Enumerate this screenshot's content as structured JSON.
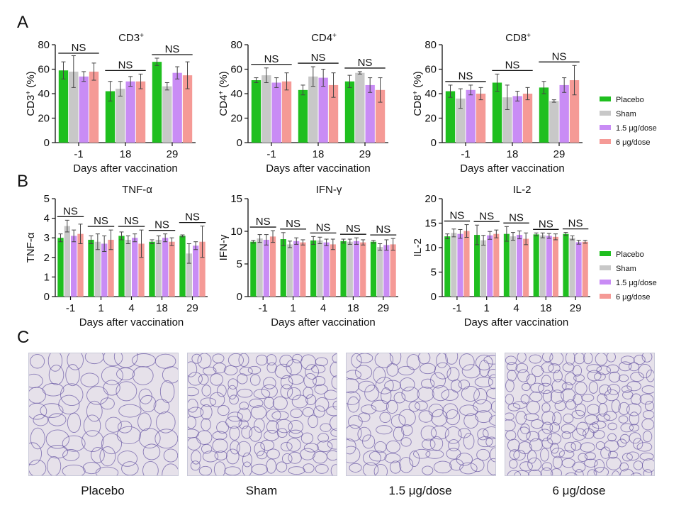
{
  "panel_labels": {
    "a": "A",
    "b": "B",
    "c": "C"
  },
  "legend": [
    {
      "name": "Placebo",
      "color": "#1fbf1f"
    },
    {
      "name": "Sham",
      "color": "#c8c8c8"
    },
    {
      "name": "1.5 μg/dose",
      "color": "#c98cf5"
    },
    {
      "name": "6 μg/dose",
      "color": "#f59a96"
    }
  ],
  "stat_label": "NS",
  "chart_data": [
    {
      "type": "bar",
      "title": "CD3",
      "title_sup": "+",
      "ylabel": "CD3",
      "ylabel_sup": "+",
      "ylabel_suffix": "(%)",
      "xlabel": "Days after vaccination",
      "categories": [
        "-1",
        "18",
        "29"
      ],
      "ylim": [
        0,
        80
      ],
      "yticks": [
        0,
        20,
        40,
        60,
        80
      ],
      "series": [
        {
          "name": "Placebo",
          "values": [
            59,
            42,
            66
          ],
          "errors": [
            7,
            8,
            3
          ]
        },
        {
          "name": "Sham",
          "values": [
            58,
            44,
            46
          ],
          "errors": [
            13,
            6,
            3
          ]
        },
        {
          "name": "1.5 μg/dose",
          "values": [
            54,
            50,
            57
          ],
          "errors": [
            4,
            4,
            5
          ]
        },
        {
          "name": "6 μg/dose",
          "values": [
            58,
            50,
            55
          ],
          "errors": [
            7,
            6,
            11
          ]
        }
      ]
    },
    {
      "type": "bar",
      "title": "CD4",
      "title_sup": "+",
      "ylabel": "CD4",
      "ylabel_sup": "+",
      "ylabel_suffix": "(%)",
      "xlabel": "Days after vaccination",
      "categories": [
        "-1",
        "18",
        "29"
      ],
      "ylim": [
        0,
        80
      ],
      "yticks": [
        0,
        20,
        40,
        60,
        80
      ],
      "series": [
        {
          "name": "Placebo",
          "values": [
            51,
            43,
            50
          ],
          "errors": [
            2,
            4,
            5
          ]
        },
        {
          "name": "Sham",
          "values": [
            55,
            54,
            57
          ],
          "errors": [
            6,
            8,
            1
          ]
        },
        {
          "name": "1.5 μg/dose",
          "values": [
            49,
            53,
            47
          ],
          "errors": [
            4,
            7,
            6
          ]
        },
        {
          "name": "6 μg/dose",
          "values": [
            50,
            47,
            43
          ],
          "errors": [
            7,
            10,
            10
          ]
        }
      ]
    },
    {
      "type": "bar",
      "title": "CD8",
      "title_sup": "+",
      "ylabel": "CD8",
      "ylabel_sup": "+",
      "ylabel_suffix": "(%)",
      "xlabel": "Days after vaccination",
      "categories": [
        "-1",
        "18",
        "29"
      ],
      "ylim": [
        0,
        80
      ],
      "yticks": [
        0,
        20,
        40,
        60,
        80
      ],
      "series": [
        {
          "name": "Placebo",
          "values": [
            42,
            49,
            45
          ],
          "errors": [
            5,
            7,
            5
          ]
        },
        {
          "name": "Sham",
          "values": [
            36,
            37,
            34
          ],
          "errors": [
            8,
            10,
            1
          ]
        },
        {
          "name": "1.5 μg/dose",
          "values": [
            43,
            38,
            47
          ],
          "errors": [
            4,
            4,
            6
          ]
        },
        {
          "name": "6 μg/dose",
          "values": [
            40,
            40,
            51
          ],
          "errors": [
            5,
            5,
            12
          ]
        }
      ]
    },
    {
      "type": "bar",
      "title": "TNF-α",
      "title_sup": "",
      "ylabel": "TNF-α",
      "ylabel_sup": "",
      "ylabel_suffix": "",
      "xlabel": "Days after vaccination",
      "categories": [
        "-1",
        "1",
        "4",
        "18",
        "29"
      ],
      "ylim": [
        0,
        5
      ],
      "yticks": [
        0,
        1,
        2,
        3,
        4,
        5
      ],
      "series": [
        {
          "name": "Placebo",
          "values": [
            3.0,
            2.9,
            3.1,
            2.8,
            3.1
          ],
          "errors": [
            0.2,
            0.2,
            0.2,
            0.1,
            0.05
          ]
        },
        {
          "name": "Sham",
          "values": [
            3.6,
            2.8,
            2.9,
            2.9,
            2.2
          ],
          "errors": [
            0.3,
            0.4,
            0.2,
            0.2,
            0.5
          ]
        },
        {
          "name": "1.5 μg/dose",
          "values": [
            3.1,
            2.7,
            3.0,
            3.0,
            2.6
          ],
          "errors": [
            0.3,
            0.4,
            0.2,
            0.2,
            0.2
          ]
        },
        {
          "name": "6 μg/dose",
          "values": [
            3.2,
            2.9,
            2.7,
            2.8,
            2.8
          ],
          "errors": [
            0.5,
            0.5,
            0.7,
            0.2,
            0.8
          ]
        }
      ]
    },
    {
      "type": "bar",
      "title": "IFN-γ",
      "title_sup": "",
      "ylabel": "IFN-γ",
      "ylabel_sup": "",
      "ylabel_suffix": "",
      "xlabel": "Days after vaccination",
      "categories": [
        "-1",
        "1",
        "4",
        "18",
        "29"
      ],
      "ylim": [
        0,
        15
      ],
      "yticks": [
        0,
        5,
        10,
        15
      ],
      "series": [
        {
          "name": "Placebo",
          "values": [
            8.4,
            8.8,
            8.6,
            8.5,
            8.4
          ],
          "errors": [
            0.2,
            1.0,
            0.6,
            0.3,
            0.2
          ]
        },
        {
          "name": "Sham",
          "values": [
            8.9,
            8.0,
            8.6,
            8.4,
            7.6
          ],
          "errors": [
            0.6,
            0.5,
            0.5,
            0.4,
            0.5
          ]
        },
        {
          "name": "1.5 μg/dose",
          "values": [
            8.7,
            8.5,
            8.3,
            8.5,
            7.9
          ],
          "errors": [
            0.8,
            0.5,
            0.5,
            0.5,
            0.8
          ]
        },
        {
          "name": "6 μg/dose",
          "values": [
            9.2,
            8.3,
            8.0,
            8.3,
            8.0
          ],
          "errors": [
            0.9,
            0.4,
            0.8,
            0.4,
            0.9
          ]
        }
      ]
    },
    {
      "type": "bar",
      "title": "IL-2",
      "title_sup": "",
      "ylabel": "IL-2",
      "ylabel_sup": "",
      "ylabel_suffix": "",
      "xlabel": "Days after vaccination",
      "categories": [
        "-1",
        "1",
        "4",
        "18",
        "29"
      ],
      "ylim": [
        0,
        20
      ],
      "yticks": [
        0,
        5,
        10,
        15,
        20
      ],
      "series": [
        {
          "name": "Placebo",
          "values": [
            12.3,
            12.6,
            12.8,
            12.7,
            12.8
          ],
          "errors": [
            0.5,
            2.0,
            1.5,
            0.3,
            0.3
          ]
        },
        {
          "name": "Sham",
          "values": [
            13.0,
            11.5,
            12.3,
            12.5,
            12.0
          ],
          "errors": [
            0.8,
            1.0,
            0.8,
            0.5,
            0.4
          ]
        },
        {
          "name": "1.5 μg/dose",
          "values": [
            12.8,
            12.5,
            12.6,
            12.4,
            11.1
          ],
          "errors": [
            0.9,
            0.8,
            0.8,
            0.5,
            0.4
          ]
        },
        {
          "name": "6 μg/dose",
          "values": [
            13.4,
            12.8,
            11.8,
            12.2,
            11.2
          ],
          "errors": [
            1.3,
            0.8,
            1.2,
            0.6,
            0.3
          ]
        }
      ]
    }
  ],
  "micrographs": [
    {
      "label": "Placebo"
    },
    {
      "label": "Sham"
    },
    {
      "label": "1.5 μg/dose"
    },
    {
      "label": "6 μg/dose"
    }
  ]
}
